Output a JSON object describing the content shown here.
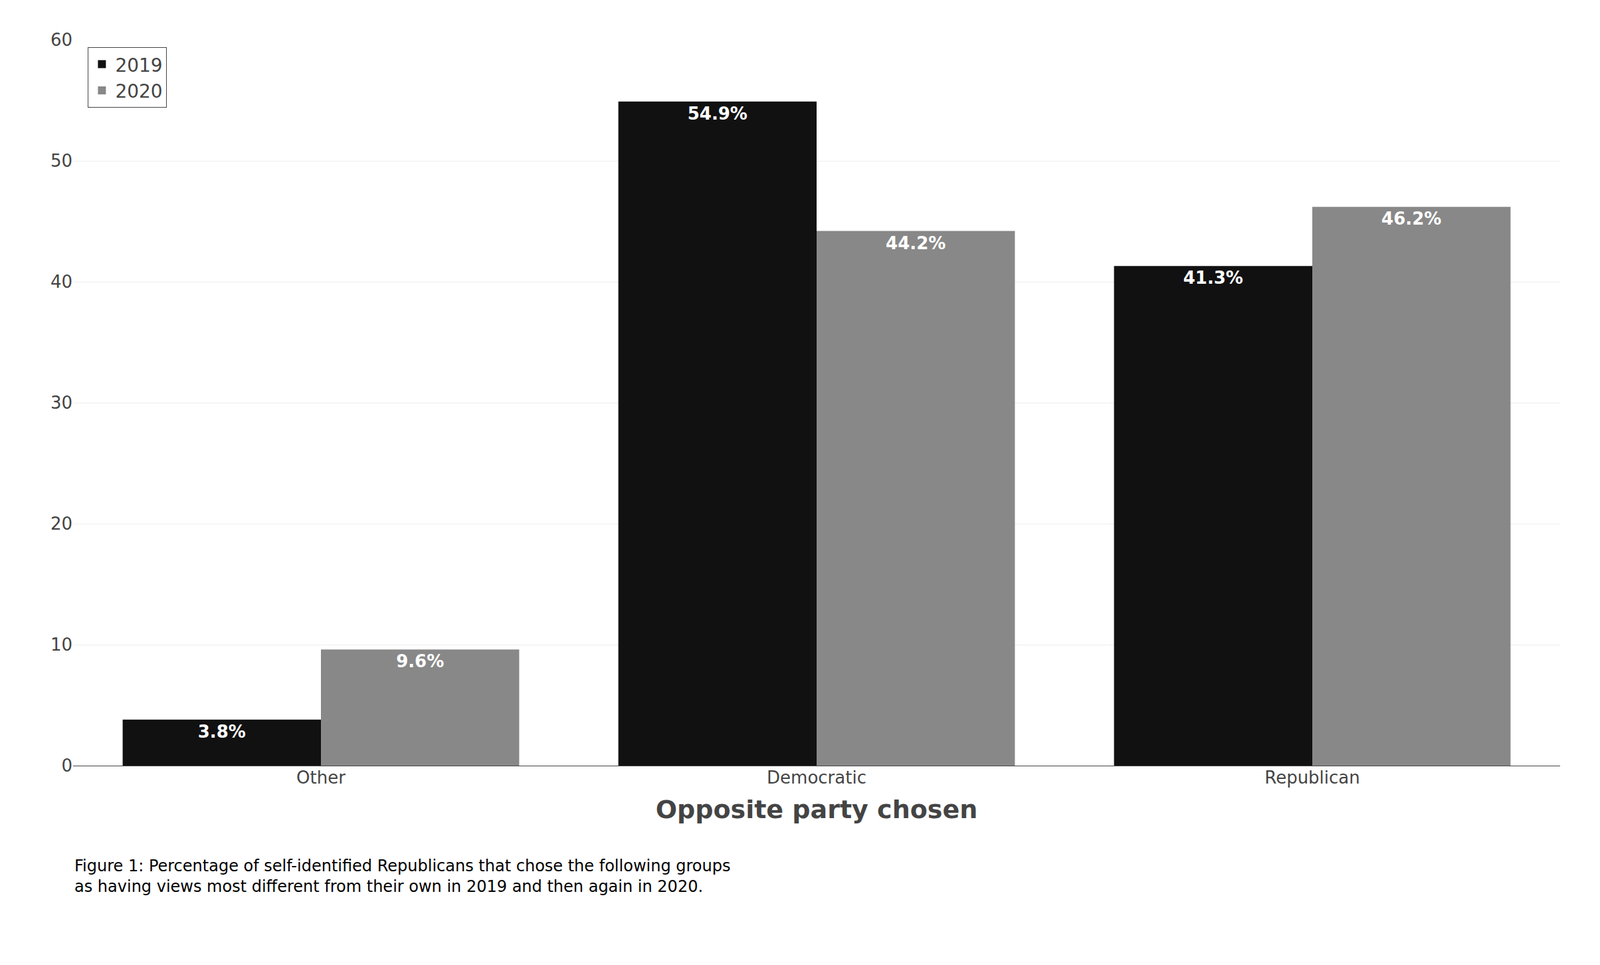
{
  "chart_data": {
    "type": "bar",
    "categories": [
      "Other",
      "Democratic",
      "Republican"
    ],
    "series": [
      {
        "name": "2019",
        "color": "#111111",
        "values": [
          3.8,
          54.9,
          41.3
        ],
        "value_labels": [
          "3.8%",
          "54.9%",
          "41.3%"
        ]
      },
      {
        "name": "2020",
        "color": "#888888",
        "values": [
          9.6,
          44.2,
          46.2
        ],
        "value_labels": [
          "9.6%",
          "44.2%",
          "46.2%"
        ]
      }
    ],
    "xlabel": "Opposite party chosen",
    "caption": "Figure 1: Percentage of self-identified Republicans that chose the following groups\nas having views most different from their own in 2019 and then again in 2020.",
    "ylim": [
      0,
      60
    ],
    "yticks": [
      0,
      10,
      20,
      30,
      40,
      50,
      60
    ],
    "grid": true,
    "legend": "upper left",
    "data_labels": true
  }
}
